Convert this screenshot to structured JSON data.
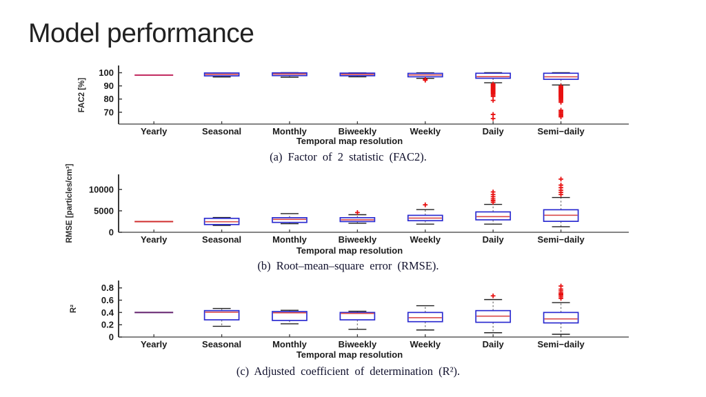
{
  "slide": {
    "title": "Model performance",
    "background": "#ffffff"
  },
  "figure": {
    "xlabel": "Temporal map resolution",
    "categories": [
      "Yearly",
      "Seasonal",
      "Monthly",
      "Biweekly",
      "Weekly",
      "Daily",
      "Semi−daily"
    ],
    "colors": {
      "box_edge": "#2b2bd0",
      "box_fill": "#ffffff",
      "median": "#d94848",
      "whisker": "#7a7a7a",
      "cap": "#1f1f1f",
      "outlier": "#e81010",
      "axis": "#3a3a3a",
      "tick_text": "#1a1a1a"
    }
  },
  "chart_data": [
    {
      "type": "boxplot",
      "id": "fac2",
      "caption": "(a)  Factor of 2 statistic (FAC2).",
      "ylabel": "FAC2 [%]",
      "xlabel": "Temporal map resolution",
      "ylim": [
        61,
        105.5
      ],
      "yticks": [
        70,
        80,
        90,
        100
      ],
      "ytick_labels": [
        "70",
        "80",
        "90",
        "100"
      ],
      "grid": false,
      "yearly_color": "#c22a60",
      "categories": [
        "Yearly",
        "Seasonal",
        "Monthly",
        "Biweekly",
        "Weekly",
        "Daily",
        "Semi−daily"
      ],
      "boxes": [
        {
          "category": "Yearly",
          "type": "line",
          "median": 98.2
        },
        {
          "category": "Seasonal",
          "type": "box",
          "q1": 97.6,
          "median": 98.8,
          "q3": 99.8,
          "whisker_low": 96.8,
          "whisker_high": 99.9,
          "outliers": []
        },
        {
          "category": "Monthly",
          "type": "box",
          "q1": 97.8,
          "median": 99.0,
          "q3": 99.9,
          "whisker_low": 96.6,
          "whisker_high": 100.0,
          "outliers": []
        },
        {
          "category": "Biweekly",
          "type": "box",
          "q1": 97.7,
          "median": 98.8,
          "q3": 99.7,
          "whisker_low": 96.9,
          "whisker_high": 99.9,
          "outliers": []
        },
        {
          "category": "Weekly",
          "type": "box",
          "q1": 96.9,
          "median": 98.3,
          "q3": 99.5,
          "whisker_low": 95.7,
          "whisker_high": 99.9,
          "outliers": [
            95.0,
            94.3
          ]
        },
        {
          "category": "Daily",
          "type": "box",
          "q1": 95.8,
          "median": 97.0,
          "q3": 99.6,
          "whisker_low": 92.4,
          "whisker_high": 100.0,
          "outliers": [
            91.4,
            90.8,
            90.2,
            89.6,
            89.0,
            88.4,
            87.8,
            87.2,
            86.6,
            86.0,
            85.4,
            84.8,
            84.0,
            83.0,
            82.0,
            79.0,
            68.3,
            65.2
          ]
        },
        {
          "category": "Semi−daily",
          "type": "box",
          "q1": 95.0,
          "median": 96.9,
          "q3": 99.6,
          "whisker_low": 90.7,
          "whisker_high": 100.0,
          "outliers": [
            89.8,
            89.2,
            88.6,
            88.0,
            87.4,
            86.8,
            86.2,
            85.6,
            85.0,
            84.4,
            83.8,
            83.2,
            82.6,
            82.0,
            81.2,
            80.4,
            79.6,
            78.6,
            77.6,
            71.5,
            70.5,
            69.5,
            68.5,
            67.5,
            66.5
          ]
        }
      ]
    },
    {
      "type": "boxplot",
      "id": "rmse",
      "caption": "(b)  Root–mean–square error (RMSE).",
      "ylabel": "RMSE [particles/cm³]",
      "xlabel": "Temporal map resolution",
      "ylim": [
        0,
        13500
      ],
      "yticks": [
        0,
        5000,
        10000
      ],
      "ytick_labels": [
        "0",
        "5000",
        "10000"
      ],
      "grid": false,
      "yearly_color": "#cf2b2b",
      "categories": [
        "Yearly",
        "Seasonal",
        "Monthly",
        "Biweekly",
        "Weekly",
        "Daily",
        "Semi−daily"
      ],
      "boxes": [
        {
          "category": "Yearly",
          "type": "line",
          "median": 2500
        },
        {
          "category": "Seasonal",
          "type": "box",
          "q1": 1800,
          "median": 2450,
          "q3": 3250,
          "whisker_low": 1600,
          "whisker_high": 3450,
          "outliers": []
        },
        {
          "category": "Monthly",
          "type": "box",
          "q1": 2300,
          "median": 3000,
          "q3": 3400,
          "whisker_low": 2000,
          "whisker_high": 4350,
          "outliers": []
        },
        {
          "category": "Biweekly",
          "type": "box",
          "q1": 2500,
          "median": 2900,
          "q3": 3400,
          "whisker_low": 2100,
          "whisker_high": 4100,
          "outliers": [
            4600
          ]
        },
        {
          "category": "Weekly",
          "type": "box",
          "q1": 2700,
          "median": 3300,
          "q3": 3950,
          "whisker_low": 1900,
          "whisker_high": 5300,
          "outliers": [
            6400
          ]
        },
        {
          "category": "Daily",
          "type": "box",
          "q1": 2900,
          "median": 3650,
          "q3": 4750,
          "whisker_low": 1900,
          "whisker_high": 6500,
          "outliers": [
            7000,
            7400,
            7800,
            8300,
            8800,
            9400
          ]
        },
        {
          "category": "Semi−daily",
          "type": "box",
          "q1": 2550,
          "median": 3970,
          "q3": 5250,
          "whisker_low": 1300,
          "whisker_high": 8100,
          "outliers": [
            8800,
            9300,
            9800,
            10400,
            11000,
            12400
          ]
        }
      ]
    },
    {
      "type": "boxplot",
      "id": "r2",
      "caption": "(c)  Adjusted coefficient of determination (R²).",
      "ylabel": "R²",
      "xlabel": "Temporal map resolution",
      "ylim": [
        0,
        0.92
      ],
      "yticks": [
        0,
        0.2,
        0.4,
        0.6,
        0.8
      ],
      "ytick_labels": [
        "0",
        "0.2",
        "0.4",
        "0.6",
        "0.8"
      ],
      "grid": false,
      "yearly_color": "#5f1d6b",
      "categories": [
        "Yearly",
        "Seasonal",
        "Monthly",
        "Biweekly",
        "Weekly",
        "Daily",
        "Semi−daily"
      ],
      "boxes": [
        {
          "category": "Yearly",
          "type": "line",
          "median": 0.4
        },
        {
          "category": "Seasonal",
          "type": "box",
          "q1": 0.28,
          "median": 0.405,
          "q3": 0.43,
          "whisker_low": 0.175,
          "whisker_high": 0.465,
          "outliers": []
        },
        {
          "category": "Monthly",
          "type": "box",
          "q1": 0.27,
          "median": 0.395,
          "q3": 0.415,
          "whisker_low": 0.215,
          "whisker_high": 0.435,
          "outliers": []
        },
        {
          "category": "Biweekly",
          "type": "box",
          "q1": 0.28,
          "median": 0.385,
          "q3": 0.4,
          "whisker_low": 0.125,
          "whisker_high": 0.42,
          "outliers": []
        },
        {
          "category": "Weekly",
          "type": "box",
          "q1": 0.25,
          "median": 0.315,
          "q3": 0.4,
          "whisker_low": 0.115,
          "whisker_high": 0.51,
          "outliers": []
        },
        {
          "category": "Daily",
          "type": "box",
          "q1": 0.24,
          "median": 0.34,
          "q3": 0.43,
          "whisker_low": 0.07,
          "whisker_high": 0.61,
          "outliers": [
            0.67
          ]
        },
        {
          "category": "Semi−daily",
          "type": "box",
          "q1": 0.23,
          "median": 0.295,
          "q3": 0.4,
          "whisker_low": 0.045,
          "whisker_high": 0.56,
          "outliers": [
            0.63,
            0.655,
            0.68,
            0.7,
            0.72,
            0.75,
            0.78,
            0.83
          ]
        }
      ]
    }
  ]
}
